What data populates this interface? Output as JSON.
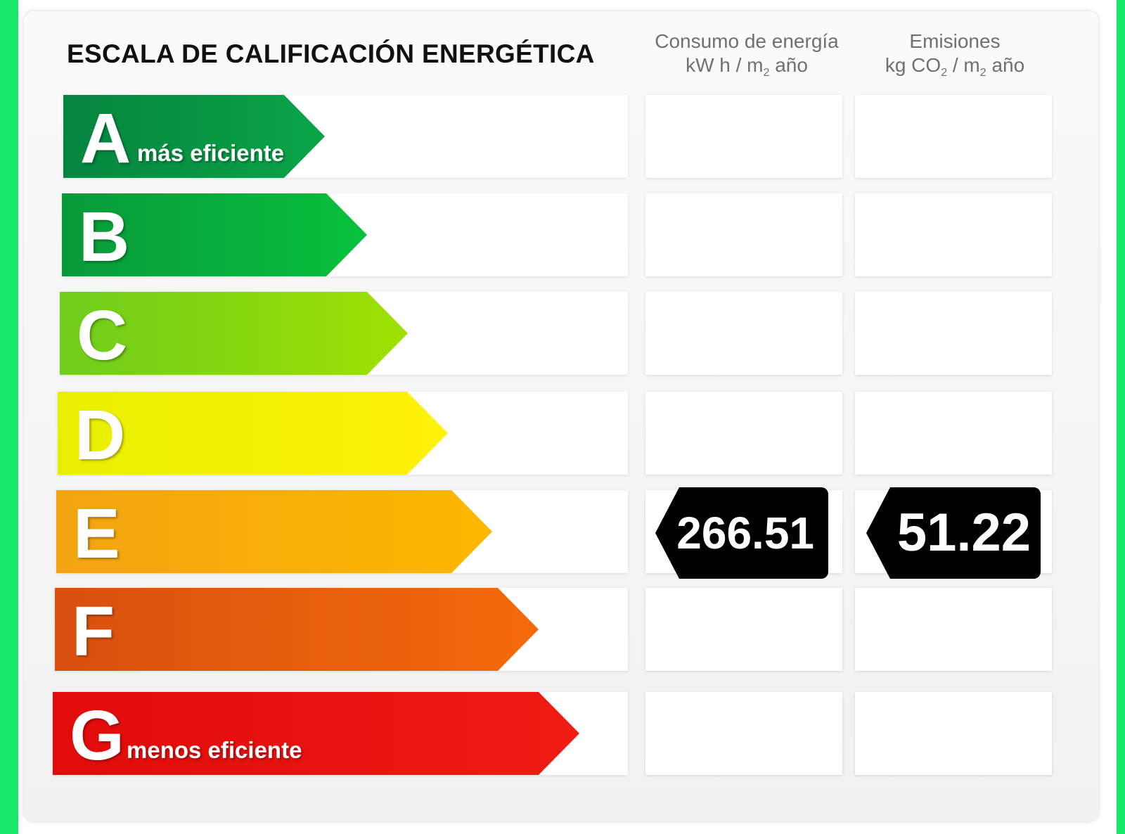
{
  "title": "ESCALA DE CALIFICACIÓN ENERGÉTICA",
  "columns": {
    "consumo": {
      "line1": "Consumo de energía",
      "unit_a": "kW h / m",
      "unit_sub": "2",
      "unit_b": " año"
    },
    "emisiones": {
      "line1": "Emisiones",
      "unit_a": "kg CO",
      "unit_sub1": "2",
      "unit_mid": " / m",
      "unit_sub2": "2",
      "unit_b": " año"
    }
  },
  "ratings": [
    {
      "letter": "A",
      "label": "más eficiente",
      "color_start": "#05843f",
      "color_end": "#0aa547"
    },
    {
      "letter": "B",
      "label": "",
      "color_start": "#089a3a",
      "color_end": "#08c13d"
    },
    {
      "letter": "C",
      "label": "",
      "color_start": "#6fcd1c",
      "color_end": "#9ee103"
    },
    {
      "letter": "D",
      "label": "",
      "color_start": "#e8f000",
      "color_end": "#fff10a"
    },
    {
      "letter": "E",
      "label": "",
      "color_start": "#f3a411",
      "color_end": "#fdb800"
    },
    {
      "letter": "F",
      "label": "",
      "color_start": "#d9500f",
      "color_end": "#f46a0b"
    },
    {
      "letter": "G",
      "label": "menos eficiente",
      "color_start": "#e10b0b",
      "color_end": "#ee1c13"
    }
  ],
  "current": {
    "rating": "E",
    "consumo_value": "266.51",
    "emisiones_value": "51.22"
  }
}
